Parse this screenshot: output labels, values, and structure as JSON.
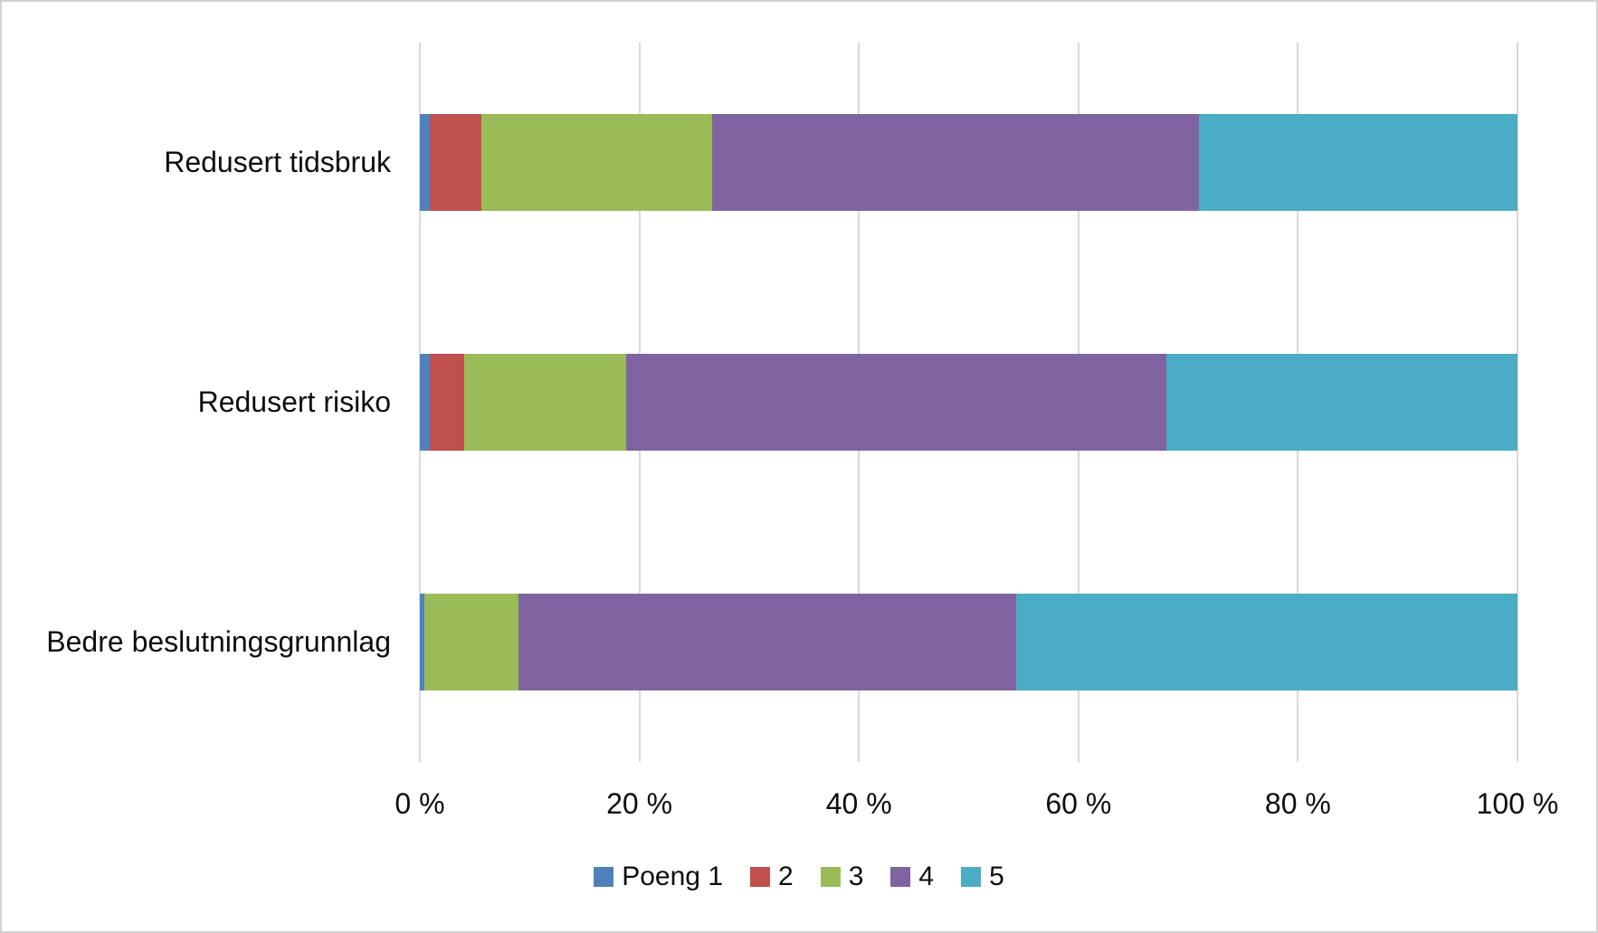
{
  "chart_data": {
    "type": "bar",
    "orientation": "horizontal",
    "stacked": true,
    "stacked_unit": "percent",
    "title": "",
    "xlabel": "",
    "ylabel": "",
    "grid": true,
    "categories": [
      "Redusert tidsbruk",
      "Redusert risiko",
      "Bedre beslutningsgrunnlag"
    ],
    "series": [
      {
        "name": "Poeng 1",
        "color": "#4F81BD",
        "values": [
          0.9,
          0.9,
          0.4
        ]
      },
      {
        "name": "2",
        "color": "#C0504D",
        "values": [
          4.7,
          3.1,
          0.0
        ]
      },
      {
        "name": "3",
        "color": "#9BBB59",
        "values": [
          21.0,
          14.8,
          8.6
        ]
      },
      {
        "name": "4",
        "color": "#8064A2",
        "values": [
          44.4,
          49.2,
          45.3
        ]
      },
      {
        "name": "5",
        "color": "#4BACC6",
        "values": [
          29.0,
          32.0,
          45.7
        ]
      }
    ],
    "x_axis": {
      "min": 0,
      "max": 100,
      "tick_step": 20,
      "tick_labels": [
        "0 %",
        "20 %",
        "40 %",
        "60 %",
        "80 %",
        "100 %"
      ]
    },
    "legend": {
      "position": "bottom",
      "entries": [
        "Poeng 1",
        "2",
        "3",
        "4",
        "5"
      ]
    }
  },
  "layout_colors": {
    "gridline": "#D9D9D9",
    "axis_line": "#D9D9D9",
    "text": "#0D0D0D",
    "background": "#FFFFFF",
    "frame_border": "#D2D2D6"
  }
}
